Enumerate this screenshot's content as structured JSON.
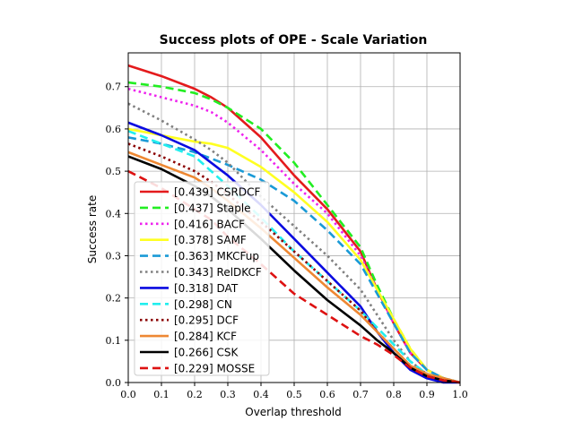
{
  "chart_data": {
    "type": "line",
    "title": "Success plots of OPE - Scale Variation",
    "xlabel": "Overlap threshold",
    "ylabel": "Success rate",
    "xlim": [
      0.0,
      1.0
    ],
    "ylim": [
      0.0,
      0.78
    ],
    "xticks": [
      "0.0",
      "0.1",
      "0.2",
      "0.3",
      "0.4",
      "0.5",
      "0.6",
      "0.7",
      "0.8",
      "0.9",
      "1.0"
    ],
    "yticks": [
      "0.0",
      "0.1",
      "0.2",
      "0.3",
      "0.4",
      "0.5",
      "0.6",
      "0.7"
    ],
    "grid": true,
    "legend_position": "lower-left",
    "x": [
      0.0,
      0.1,
      0.2,
      0.25,
      0.3,
      0.4,
      0.5,
      0.6,
      0.7,
      0.75,
      0.8,
      0.85,
      0.9,
      0.95,
      1.0
    ],
    "series": [
      {
        "name": "[0.439] CSRDCF",
        "color": "#e41a1c",
        "dash": "solid",
        "values": [
          0.75,
          0.725,
          0.695,
          0.675,
          0.65,
          0.58,
          0.49,
          0.41,
          0.31,
          0.22,
          0.14,
          0.07,
          0.03,
          0.01,
          0.0
        ]
      },
      {
        "name": "[0.437] Staple",
        "color": "#22ee22",
        "dash": "dashed",
        "values": [
          0.71,
          0.7,
          0.685,
          0.67,
          0.65,
          0.6,
          0.52,
          0.42,
          0.32,
          0.23,
          0.15,
          0.08,
          0.03,
          0.01,
          0.0
        ]
      },
      {
        "name": "[0.416] BACF",
        "color": "#ee22ee",
        "dash": "dotted",
        "values": [
          0.695,
          0.675,
          0.655,
          0.64,
          0.615,
          0.55,
          0.47,
          0.4,
          0.3,
          0.22,
          0.14,
          0.07,
          0.03,
          0.01,
          0.0
        ]
      },
      {
        "name": "[0.378] SAMF",
        "color": "#ffff22",
        "dash": "solid",
        "values": [
          0.6,
          0.585,
          0.57,
          0.565,
          0.555,
          0.51,
          0.45,
          0.38,
          0.29,
          0.22,
          0.15,
          0.08,
          0.03,
          0.01,
          0.0
        ]
      },
      {
        "name": "[0.363] MKCFup",
        "color": "#1a9ad6",
        "dash": "dashed",
        "values": [
          0.58,
          0.565,
          0.545,
          0.53,
          0.515,
          0.48,
          0.43,
          0.36,
          0.28,
          0.21,
          0.14,
          0.07,
          0.03,
          0.01,
          0.0
        ]
      },
      {
        "name": "[0.343] RelDKCF",
        "color": "#808080",
        "dash": "dotted",
        "values": [
          0.66,
          0.62,
          0.575,
          0.55,
          0.52,
          0.44,
          0.37,
          0.3,
          0.22,
          0.16,
          0.1,
          0.05,
          0.02,
          0.01,
          0.0
        ]
      },
      {
        "name": "[0.318] DAT",
        "color": "#0a0ae0",
        "dash": "solid",
        "values": [
          0.615,
          0.585,
          0.55,
          0.52,
          0.49,
          0.42,
          0.34,
          0.26,
          0.18,
          0.12,
          0.07,
          0.03,
          0.01,
          0.0,
          0.0
        ]
      },
      {
        "name": "[0.298] CN",
        "color": "#22eeee",
        "dash": "dashed",
        "values": [
          0.595,
          0.565,
          0.535,
          0.5,
          0.465,
          0.39,
          0.31,
          0.24,
          0.17,
          0.13,
          0.09,
          0.05,
          0.02,
          0.01,
          0.0
        ]
      },
      {
        "name": "[0.295] DCF",
        "color": "#8b0000",
        "dash": "dotted",
        "values": [
          0.565,
          0.535,
          0.5,
          0.475,
          0.445,
          0.38,
          0.31,
          0.24,
          0.17,
          0.12,
          0.08,
          0.04,
          0.02,
          0.01,
          0.0
        ]
      },
      {
        "name": "[0.284] KCF",
        "color": "#ee8833",
        "dash": "solid",
        "values": [
          0.545,
          0.515,
          0.485,
          0.46,
          0.43,
          0.365,
          0.295,
          0.225,
          0.16,
          0.12,
          0.08,
          0.04,
          0.02,
          0.01,
          0.0
        ]
      },
      {
        "name": "[0.266] CSK",
        "color": "#000000",
        "dash": "solid",
        "values": [
          0.535,
          0.505,
          0.465,
          0.44,
          0.41,
          0.34,
          0.265,
          0.195,
          0.135,
          0.1,
          0.07,
          0.035,
          0.015,
          0.005,
          0.0
        ]
      },
      {
        "name": "[0.229] MOSSE",
        "color": "#dd1111",
        "dash": "dashed",
        "values": [
          0.5,
          0.46,
          0.41,
          0.385,
          0.345,
          0.28,
          0.21,
          0.16,
          0.11,
          0.09,
          0.065,
          0.035,
          0.015,
          0.005,
          0.0
        ]
      }
    ]
  }
}
